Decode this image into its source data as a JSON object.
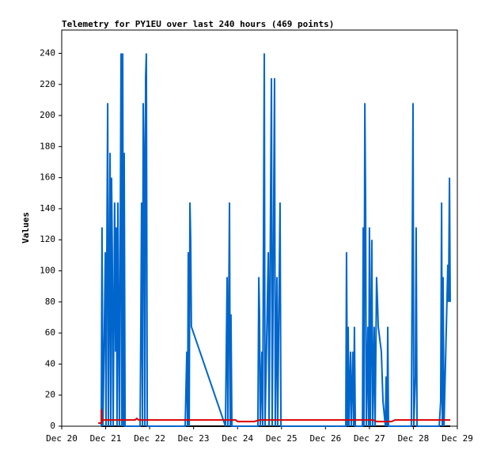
{
  "chart_data": {
    "type": "line",
    "title": "Telemetry for PY1EU over last 240 hours (469 points)",
    "y_label": "Values",
    "xlim": [
      0,
      216
    ],
    "ylim": [
      0,
      255
    ],
    "xticks": [
      {
        "value": 0,
        "label": "Dec 20"
      },
      {
        "value": 24,
        "label": "Dec 21"
      },
      {
        "value": 48,
        "label": "Dec 22"
      },
      {
        "value": 72,
        "label": "Dec 23"
      },
      {
        "value": 96,
        "label": "Dec 24"
      },
      {
        "value": 120,
        "label": "Dec 25"
      },
      {
        "value": 144,
        "label": "Dec 26"
      },
      {
        "value": 168,
        "label": "Dec 27"
      },
      {
        "value": 192,
        "label": "Dec 28"
      },
      {
        "value": 216,
        "label": "Dec 29"
      }
    ],
    "yticks": [
      0,
      20,
      40,
      60,
      80,
      100,
      120,
      140,
      160,
      180,
      200,
      220,
      240
    ],
    "grid": false,
    "series": [
      {
        "color": "#000000",
        "x": [
          21.6,
          212.1
        ],
        "values": [
          0,
          0
        ]
      },
      {
        "color": "#0066cc",
        "x": [
          21.6,
          22.0,
          22.5,
          23.3,
          23.8,
          24.2,
          24.6,
          25.1,
          25.5,
          26.4,
          26.8,
          27.2,
          27.6,
          28.1,
          28.9,
          29.4,
          29.8,
          30.2,
          30.7,
          31.1,
          31.5,
          32.4,
          32.8,
          33.3,
          33.7,
          34.1,
          34.6,
          42.8,
          43.2,
          43.6,
          44.1,
          44.5,
          44.9,
          45.4,
          45.8,
          46.2,
          46.7,
          67.4,
          68.3,
          68.7,
          69.1,
          69.6,
          70.0,
          70.4,
          70.8,
          89.4,
          90.3,
          90.7,
          91.6,
          92.0,
          92.4,
          92.9,
          107.1,
          107.6,
          108.0,
          108.4,
          109.3,
          109.7,
          110.6,
          111.0,
          112.8,
          113.2,
          114.5,
          114.9,
          116.2,
          116.6,
          117.5,
          117.9,
          119.2,
          119.7,
          155.1,
          155.5,
          156.0,
          156.4,
          156.8,
          157.2,
          157.7,
          158.1,
          159.0,
          159.4,
          159.8,
          160.3,
          164.2,
          164.6,
          165.0,
          165.5,
          165.9,
          166.3,
          167.2,
          167.6,
          168.0,
          168.5,
          169.3,
          169.8,
          170.6,
          171.1,
          171.9,
          172.4,
          172.8,
          174.5,
          175.4,
          176.7,
          177.1,
          177.6,
          178.0,
          178.4,
          190.9,
          191.8,
          192.2,
          193.1,
          193.5,
          194.0,
          206.1,
          206.9,
          207.4,
          207.8,
          208.2,
          208.7,
          210.8,
          211.2,
          211.7,
          212.1
        ],
        "values": [
          0,
          128,
          0,
          64,
          112,
          0,
          104,
          208,
          0,
          176,
          0,
          160,
          112,
          0,
          144,
          48,
          128,
          0,
          144,
          64,
          0,
          240,
          0,
          240,
          0,
          176,
          0,
          0,
          64,
          144,
          0,
          208,
          176,
          0,
          224,
          240,
          0,
          0,
          48,
          0,
          112,
          0,
          144,
          120,
          64,
          0,
          96,
          0,
          144,
          0,
          72,
          0,
          0,
          96,
          72,
          0,
          48,
          0,
          240,
          0,
          112,
          0,
          224,
          0,
          224,
          0,
          96,
          0,
          144,
          0,
          0,
          112,
          0,
          64,
          0,
          24,
          48,
          0,
          48,
          0,
          64,
          0,
          0,
          128,
          0,
          208,
          144,
          0,
          64,
          0,
          128,
          0,
          120,
          0,
          64,
          0,
          96,
          80,
          64,
          48,
          16,
          0,
          32,
          0,
          64,
          0,
          0,
          208,
          0,
          32,
          128,
          0,
          0,
          16,
          144,
          0,
          96,
          0,
          104,
          80,
          160,
          80
        ]
      },
      {
        "color": "#dd0000",
        "x": [
          19.9,
          21.6,
          21.7,
          22.0,
          22.5,
          40,
          41,
          42,
          95,
          96,
          105,
          108,
          170,
          172,
          180,
          182,
          212.1
        ],
        "values": [
          2,
          2,
          11,
          3,
          4,
          4,
          5,
          4,
          4,
          3,
          3,
          4,
          4,
          3,
          3,
          4,
          4
        ]
      }
    ]
  }
}
